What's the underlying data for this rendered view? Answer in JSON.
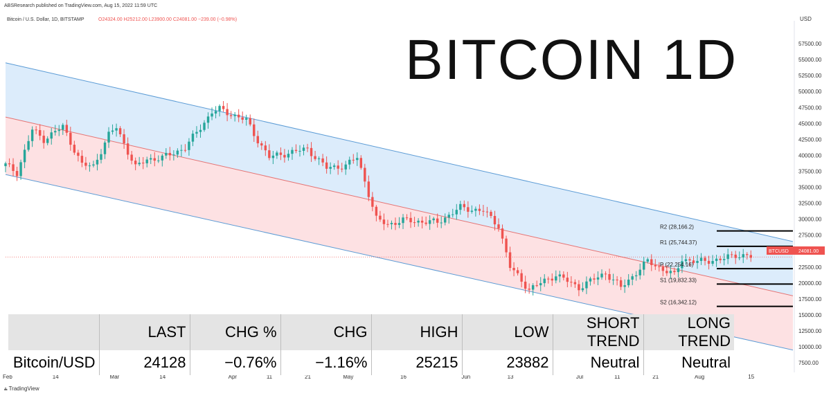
{
  "header": {
    "published": "ABSResearch published on TradingView.com, Aug 15, 2022 11:59 UTC",
    "symbol": "Bitcoin / U.S. Dollar, 1D, BITSTAMP",
    "ohlc": "O24324.00 H25212.00 L23900.00 C24081.00 −239.00 (−0.98%)"
  },
  "title_overlay": "BITCOIN 1D",
  "price_label": {
    "ticker": "BTCUSD",
    "value": "24081.00"
  },
  "footer": {
    "logo_text": "TradingView"
  },
  "colors": {
    "up": "#26a69a",
    "down": "#ef5350",
    "upper_channel_fill": "#dcecfb",
    "lower_channel_fill": "#fde1e3",
    "channel_line": "#5b9bd5",
    "mid_line": "#e57373",
    "price_tag": "#ef5350"
  },
  "chart_data": {
    "type": "candlestick",
    "ylabel": "USD",
    "ylim": [
      6000,
      60000
    ],
    "y_ticks": [
      7500,
      10000,
      12500,
      15000,
      17500,
      20000,
      22500,
      25000,
      27500,
      30000,
      32500,
      35000,
      37500,
      40000,
      42500,
      45000,
      47500,
      50000,
      52500,
      55000,
      57500
    ],
    "x_range": [
      "2022-02-01",
      "2022-08-26"
    ],
    "x_ticks": [
      {
        "date": "2022-02-01",
        "label": "Feb"
      },
      {
        "date": "2022-02-14",
        "label": "14"
      },
      {
        "date": "2022-03-01",
        "label": "Mar"
      },
      {
        "date": "2022-03-14",
        "label": "14"
      },
      {
        "date": "2022-04-01",
        "label": "Apr"
      },
      {
        "date": "2022-04-11",
        "label": "11"
      },
      {
        "date": "2022-04-21",
        "label": "21"
      },
      {
        "date": "2022-05-01",
        "label": "May"
      },
      {
        "date": "2022-05-16",
        "label": "16"
      },
      {
        "date": "2022-06-01",
        "label": "Jun"
      },
      {
        "date": "2022-06-13",
        "label": "13"
      },
      {
        "date": "2022-07-01",
        "label": "Jul"
      },
      {
        "date": "2022-07-11",
        "label": "11"
      },
      {
        "date": "2022-07-21",
        "label": "21"
      },
      {
        "date": "2022-08-01",
        "label": "Aug"
      },
      {
        "date": "2022-08-15",
        "label": "15"
      }
    ],
    "channel": {
      "upper": [
        [
          "2022-02-01",
          54500
        ],
        [
          "2022-08-26",
          26500
        ]
      ],
      "middle": [
        [
          "2022-02-01",
          46000
        ],
        [
          "2022-08-26",
          18000
        ]
      ],
      "lower": [
        [
          "2022-02-01",
          37000
        ],
        [
          "2022-08-26",
          9500
        ]
      ]
    },
    "levels": [
      {
        "label": "R2 (28,166.2)",
        "value": 28166.2
      },
      {
        "label": "R1 (25,744.37)",
        "value": 25744.37
      },
      {
        "label": "P (22,254.16)",
        "value": 22254.16
      },
      {
        "label": "S1 (19,832.33)",
        "value": 19832.33
      },
      {
        "label": "S2 (16,342.12)",
        "value": 16342.12
      }
    ],
    "current_price": 24081,
    "anchors": [
      [
        "2022-02-01",
        38500
      ],
      [
        "2022-02-04",
        37300
      ],
      [
        "2022-02-08",
        44000
      ],
      [
        "2022-02-11",
        42500
      ],
      [
        "2022-02-16",
        44500
      ],
      [
        "2022-02-21",
        38500
      ],
      [
        "2022-02-24",
        38300
      ],
      [
        "2022-02-28",
        43200
      ],
      [
        "2022-03-02",
        44400
      ],
      [
        "2022-03-07",
        38100
      ],
      [
        "2022-03-10",
        39400
      ],
      [
        "2022-03-14",
        39600
      ],
      [
        "2022-03-20",
        41200
      ],
      [
        "2022-03-27",
        46800
      ],
      [
        "2022-03-29",
        47200
      ],
      [
        "2022-04-05",
        45500
      ],
      [
        "2022-04-07",
        43300
      ],
      [
        "2022-04-11",
        39700
      ],
      [
        "2022-04-16",
        40400
      ],
      [
        "2022-04-21",
        41000
      ],
      [
        "2022-04-26",
        38000
      ],
      [
        "2022-05-01",
        38400
      ],
      [
        "2022-05-04",
        39700
      ],
      [
        "2022-05-06",
        36000
      ],
      [
        "2022-05-09",
        30000
      ],
      [
        "2022-05-12",
        29200
      ],
      [
        "2022-05-16",
        29800
      ],
      [
        "2022-05-25",
        29500
      ],
      [
        "2022-05-31",
        31800
      ],
      [
        "2022-06-06",
        31300
      ],
      [
        "2022-06-10",
        29000
      ],
      [
        "2022-06-13",
        22500
      ],
      [
        "2022-06-18",
        19000
      ],
      [
        "2022-06-25",
        21300
      ],
      [
        "2022-07-01",
        19300
      ],
      [
        "2022-07-08",
        21600
      ],
      [
        "2022-07-12",
        19300
      ],
      [
        "2022-07-19",
        23400
      ],
      [
        "2022-07-26",
        21200
      ],
      [
        "2022-07-28",
        23800
      ],
      [
        "2022-08-01",
        23300
      ],
      [
        "2022-08-08",
        23800
      ],
      [
        "2022-08-11",
        24400
      ],
      [
        "2022-08-14",
        24300
      ],
      [
        "2022-08-15",
        24081
      ]
    ]
  },
  "table": {
    "headers": [
      "",
      "LAST",
      "CHG %",
      "CHG",
      "HIGH",
      "LOW",
      "SHORT TREND",
      "LONG TREND"
    ],
    "row": [
      "Bitcoin/USD",
      "24128",
      "−0.76%",
      "−1.16%",
      "25215",
      "23882",
      "Neutral",
      "Neutral"
    ]
  }
}
